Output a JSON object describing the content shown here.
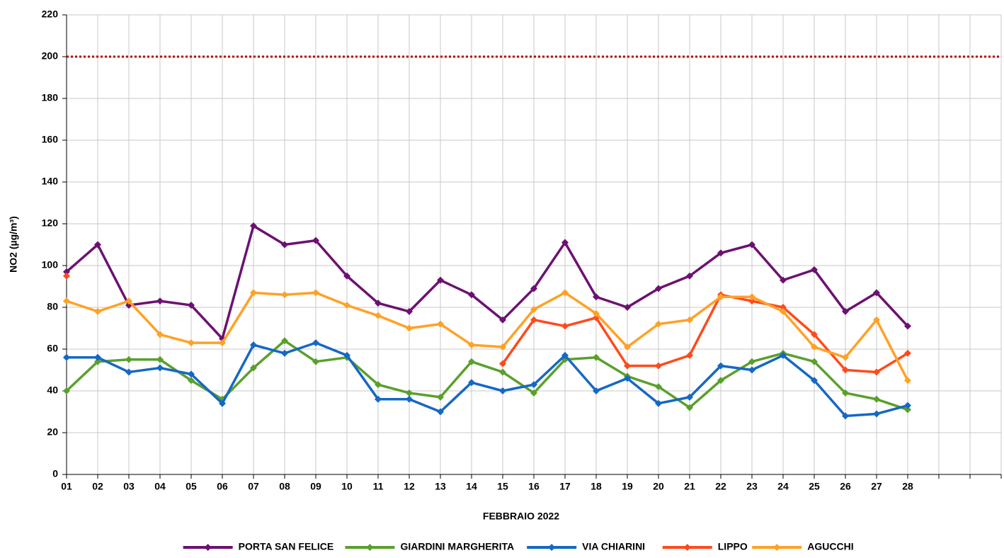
{
  "chart_data": {
    "type": "line",
    "x_label": "FEBBRAIO 2022",
    "y_label": "NO2 (µg/m³)",
    "categories": [
      "01",
      "02",
      "03",
      "04",
      "05",
      "06",
      "07",
      "08",
      "09",
      "10",
      "11",
      "12",
      "13",
      "14",
      "15",
      "16",
      "17",
      "18",
      "19",
      "20",
      "21",
      "22",
      "23",
      "24",
      "25",
      "26",
      "27",
      "28",
      null,
      null,
      null
    ],
    "ylim": [
      0,
      220
    ],
    "yticks": [
      0,
      20,
      40,
      60,
      80,
      100,
      120,
      140,
      160,
      180,
      200,
      220
    ],
    "grid": true,
    "threshold": {
      "value": 200,
      "color": "#c00000"
    },
    "legend": "bottom",
    "series": [
      {
        "name": "PORTA SAN FELICE",
        "color": "#6c1172",
        "values": [
          97,
          110,
          81,
          83,
          81,
          65,
          119,
          110,
          112,
          95,
          82,
          78,
          93,
          86,
          74,
          89,
          111,
          85,
          80,
          89,
          95,
          106,
          110,
          93,
          98,
          78,
          87,
          71,
          null,
          null,
          null
        ]
      },
      {
        "name": "GIARDINI MARGHERITA",
        "color": "#5aa02c",
        "values": [
          40,
          54,
          55,
          55,
          45,
          36,
          51,
          64,
          54,
          56,
          43,
          39,
          37,
          54,
          49,
          39,
          55,
          56,
          47,
          42,
          32,
          45,
          54,
          58,
          54,
          39,
          36,
          31,
          null,
          null,
          null
        ]
      },
      {
        "name": "VIA CHIARINI",
        "color": "#1568c4",
        "values": [
          56,
          56,
          49,
          51,
          48,
          34,
          62,
          58,
          63,
          57,
          36,
          36,
          30,
          44,
          40,
          43,
          57,
          40,
          46,
          34,
          37,
          52,
          50,
          57,
          45,
          28,
          29,
          33,
          null,
          null,
          null
        ]
      },
      {
        "name": "LIPPO",
        "color": "#ff4a1c",
        "values": [
          95,
          null,
          null,
          null,
          null,
          null,
          null,
          null,
          null,
          null,
          null,
          null,
          null,
          null,
          53,
          74,
          71,
          75,
          52,
          52,
          57,
          86,
          83,
          80,
          67,
          50,
          49,
          58,
          null,
          null,
          null
        ]
      },
      {
        "name": "AGUCCHI",
        "color": "#ffa126",
        "values": [
          83,
          78,
          83,
          67,
          63,
          63,
          87,
          86,
          87,
          81,
          76,
          70,
          72,
          62,
          61,
          79,
          87,
          77,
          61,
          72,
          74,
          85,
          85,
          78,
          61,
          56,
          74,
          45,
          null,
          null,
          null
        ]
      }
    ]
  }
}
